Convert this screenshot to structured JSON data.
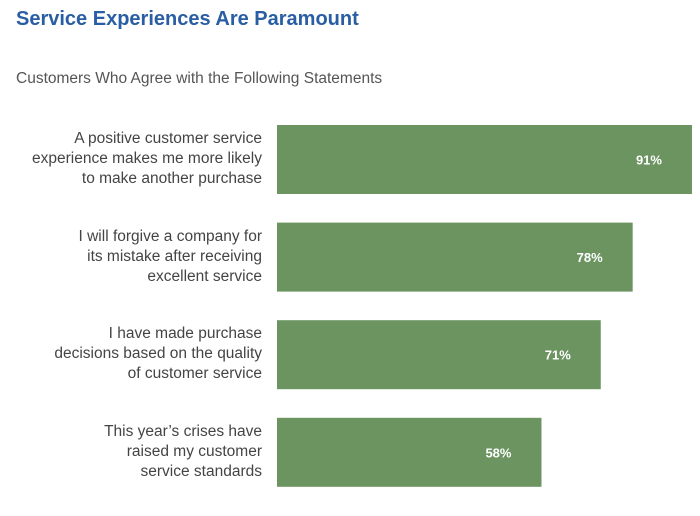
{
  "title": "Service Experiences Are Paramount",
  "subtitle": "Customers Who Agree with the Following Statements",
  "colors": {
    "title": "#2a5ea4",
    "bar": "#6b9460",
    "bar_label": "#ffffff",
    "category_text": "#444444"
  },
  "chart_data": {
    "type": "bar",
    "orientation": "horizontal",
    "unit": "%",
    "categories": [
      "A positive customer service experience makes me more likely to make another purchase",
      "I will forgive a company for its mistake after receiving excellent service",
      "I have made purchase decisions based on the quality of customer service",
      "This year’s crises have raised my customer service standards"
    ],
    "category_lines": [
      [
        "A positive customer service",
        "experience makes me more likely",
        "to make another purchase"
      ],
      [
        "I will forgive a company for",
        "its mistake after receiving",
        "excellent service"
      ],
      [
        "I have made purchase",
        "decisions based on the quality",
        "of customer service"
      ],
      [
        "This year’s crises have",
        "raised my customer",
        "service standards"
      ]
    ],
    "values": [
      91,
      78,
      71,
      58
    ],
    "data_labels": [
      "91%",
      "78%",
      "71%",
      "58%"
    ],
    "xlim": [
      0,
      100
    ],
    "grid": false,
    "legend": "none"
  }
}
